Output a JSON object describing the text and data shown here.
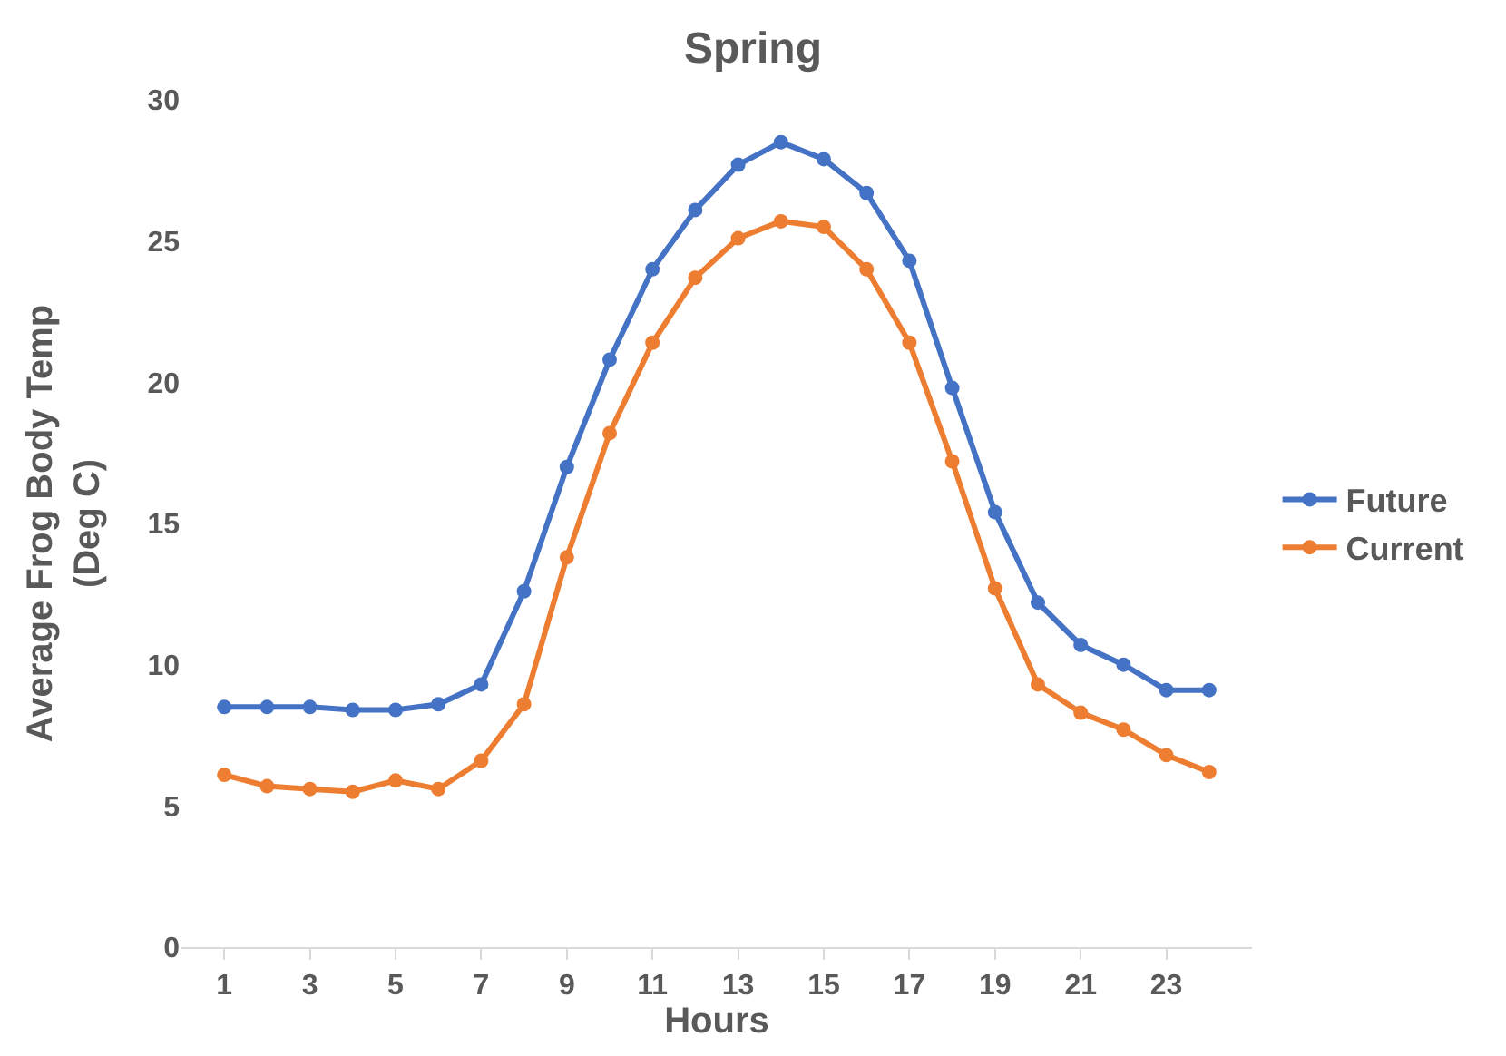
{
  "chart_data": {
    "type": "line",
    "title": "Spring",
    "xlabel": "Hours",
    "ylabel": "Average Frog Body Temp\n(Deg C)",
    "x": [
      1,
      2,
      3,
      4,
      5,
      6,
      7,
      8,
      9,
      10,
      11,
      12,
      13,
      14,
      15,
      16,
      17,
      18,
      19,
      20,
      21,
      22,
      23,
      24
    ],
    "xlim": [
      0,
      25
    ],
    "xticks": [
      1,
      3,
      5,
      7,
      9,
      11,
      13,
      15,
      17,
      19,
      21,
      23
    ],
    "series": [
      {
        "name": "Future",
        "color": "#4472c4",
        "values": [
          8.5,
          8.5,
          8.5,
          8.4,
          8.4,
          8.6,
          9.3,
          12.6,
          17.0,
          20.8,
          24.0,
          26.1,
          27.7,
          28.5,
          27.9,
          26.7,
          24.3,
          19.8,
          15.4,
          12.2,
          10.7,
          10.0,
          9.1,
          9.1
        ]
      },
      {
        "name": "Current",
        "color": "#ed7d31",
        "values": [
          6.1,
          5.7,
          5.6,
          5.5,
          5.9,
          5.6,
          6.6,
          8.6,
          13.8,
          18.2,
          21.4,
          23.7,
          25.1,
          25.7,
          25.5,
          24.0,
          21.4,
          17.2,
          12.7,
          9.3,
          8.3,
          7.7,
          6.8,
          6.2
        ]
      }
    ],
    "ylim": [
      0,
      30
    ],
    "yticks": [
      0,
      5,
      10,
      15,
      20,
      25,
      30
    ],
    "grid": false,
    "legend": "right",
    "marker": "circle",
    "line_style": "solid"
  }
}
